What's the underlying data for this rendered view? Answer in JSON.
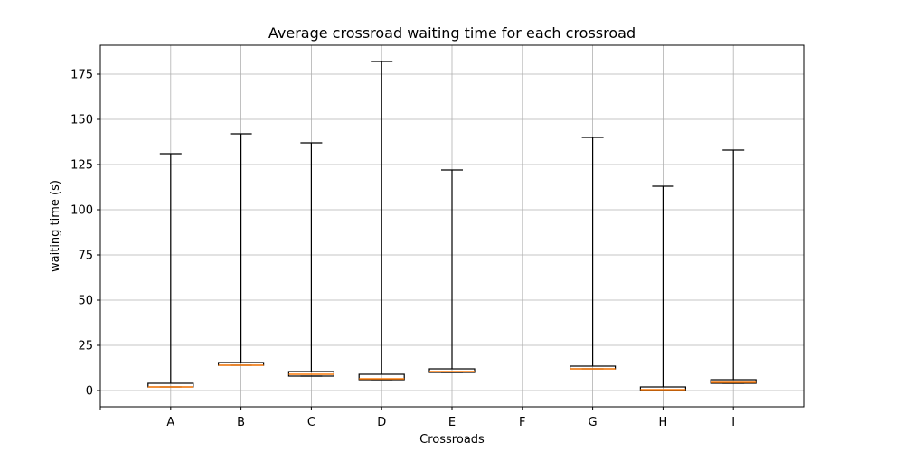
{
  "chart_data": {
    "type": "box",
    "title": "Average crossroad waiting time for each crossroad",
    "xlabel": "Crossroads",
    "ylabel": "waiting time (s)",
    "categories": [
      "A",
      "B",
      "C",
      "D",
      "E",
      "F",
      "G",
      "H",
      "I"
    ],
    "ylim": [
      -9,
      191
    ],
    "yticks": [
      0,
      25,
      50,
      75,
      100,
      125,
      150,
      175
    ],
    "grid": true,
    "boxes": [
      {
        "category": "A",
        "whisker_low": 2,
        "q1": 2,
        "median": 2,
        "q3": 4,
        "whisker_high": 131
      },
      {
        "category": "B",
        "whisker_low": 14,
        "q1": 14,
        "median": 14,
        "q3": 15.5,
        "whisker_high": 142
      },
      {
        "category": "C",
        "whisker_low": 8,
        "q1": 8,
        "median": 9,
        "q3": 10.5,
        "whisker_high": 137
      },
      {
        "category": "D",
        "whisker_low": 6,
        "q1": 6,
        "median": 6.5,
        "q3": 9,
        "whisker_high": 182
      },
      {
        "category": "E",
        "whisker_low": 10,
        "q1": 10,
        "median": 10.5,
        "q3": 12,
        "whisker_high": 122
      },
      {
        "category": "F",
        "empty": true
      },
      {
        "category": "G",
        "whisker_low": 12,
        "q1": 12,
        "median": 12,
        "q3": 13.5,
        "whisker_high": 140
      },
      {
        "category": "H",
        "whisker_low": 0,
        "q1": 0,
        "median": 0.5,
        "q3": 2,
        "whisker_high": 113
      },
      {
        "category": "I",
        "whisker_low": 4,
        "q1": 4,
        "median": 4.5,
        "q3": 6,
        "whisker_high": 133
      }
    ],
    "colors": {
      "box": "#000000",
      "median": "#ff7f0e",
      "grid": "#b0b0b0"
    }
  }
}
